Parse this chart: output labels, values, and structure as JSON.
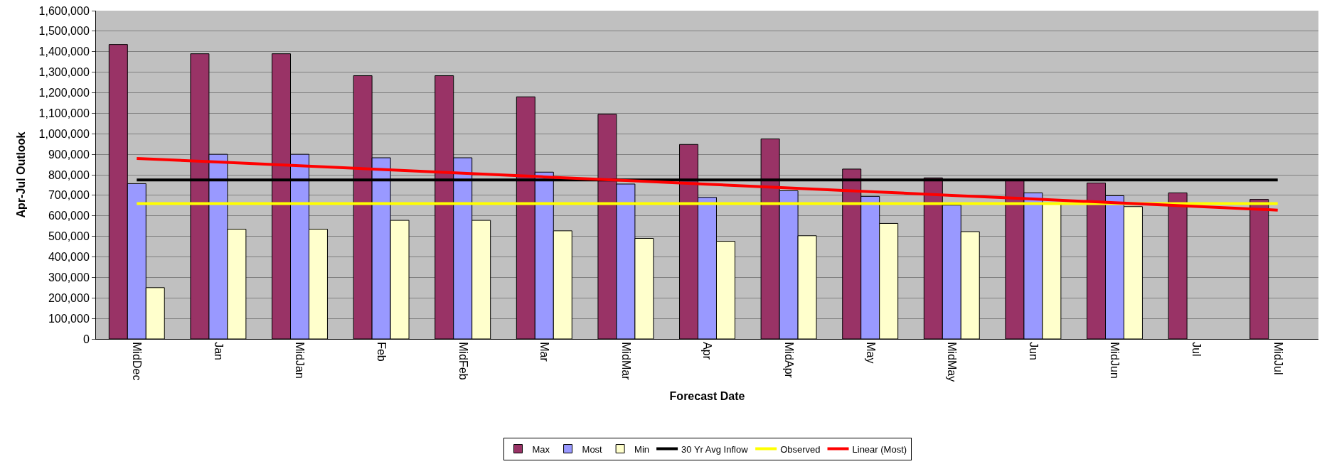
{
  "chart_data": {
    "type": "bar",
    "xlabel": "Forecast Date",
    "ylabel": "Apr-Jul Outlook",
    "categories": [
      "MidDec",
      "Jan",
      "MidJan",
      "Feb",
      "MidFeb",
      "Mar",
      "MidMar",
      "Apr",
      "MidApr",
      "May",
      "MidMay",
      "Jun",
      "MidJun",
      "Jul",
      "MidJul"
    ],
    "series": [
      {
        "name": "Max",
        "color": "#993366",
        "values": [
          1435000,
          1390000,
          1390000,
          1283000,
          1283000,
          1180000,
          1095000,
          948000,
          975000,
          828000,
          785000,
          775000,
          760000,
          712000,
          680000
        ]
      },
      {
        "name": "Most",
        "color": "#9999ff",
        "values": [
          757000,
          900000,
          900000,
          883000,
          883000,
          813000,
          755000,
          690000,
          722000,
          695000,
          652000,
          712000,
          698000,
          null,
          null
        ]
      },
      {
        "name": "Min",
        "color": "#ffffcc",
        "values": [
          250000,
          535000,
          535000,
          578000,
          578000,
          527000,
          490000,
          476000,
          503000,
          563000,
          523000,
          658000,
          645000,
          null,
          null
        ]
      },
      {
        "name": "30 Yr Avg Inflow",
        "type": "line",
        "color": "#000000",
        "values": [
          775000,
          775000,
          775000,
          775000,
          775000,
          775000,
          775000,
          775000,
          775000,
          775000,
          775000,
          775000,
          775000,
          775000,
          775000
        ]
      },
      {
        "name": "Observed",
        "type": "line",
        "color": "#ffff00",
        "values": [
          660000,
          660000,
          660000,
          660000,
          660000,
          660000,
          660000,
          660000,
          660000,
          660000,
          660000,
          660000,
          660000,
          660000,
          660000
        ]
      },
      {
        "name": "Linear (Most)",
        "type": "line",
        "color": "#ff0000",
        "values": [
          880000,
          862000,
          844000,
          826000,
          808000,
          790000,
          772000,
          754000,
          736000,
          718000,
          700000,
          682000,
          664000,
          646000,
          628000
        ]
      }
    ],
    "ylim": [
      0,
      1600000
    ],
    "yticks": [
      {
        "value": 0,
        "label": "0"
      },
      {
        "value": 100000,
        "label": "100,000"
      },
      {
        "value": 200000,
        "label": "200,000"
      },
      {
        "value": 300000,
        "label": "300,000"
      },
      {
        "value": 400000,
        "label": "400,000"
      },
      {
        "value": 500000,
        "label": "500,000"
      },
      {
        "value": 600000,
        "label": "600,000"
      },
      {
        "value": 700000,
        "label": "700,000"
      },
      {
        "value": 800000,
        "label": "800,000"
      },
      {
        "value": 900000,
        "label": "900,000"
      },
      {
        "value": 1000000,
        "label": "1,000,000"
      },
      {
        "value": 1100000,
        "label": "1,100,000"
      },
      {
        "value": 1200000,
        "label": "1,200,000"
      },
      {
        "value": 1300000,
        "label": "1,300,000"
      },
      {
        "value": 1400000,
        "label": "1,400,000"
      },
      {
        "value": 1500000,
        "label": "1,500,000"
      },
      {
        "value": 1600000,
        "label": "1,600,000"
      }
    ],
    "grid": "y",
    "legend": "bottom",
    "marker": "none",
    "line_style": "solid"
  }
}
